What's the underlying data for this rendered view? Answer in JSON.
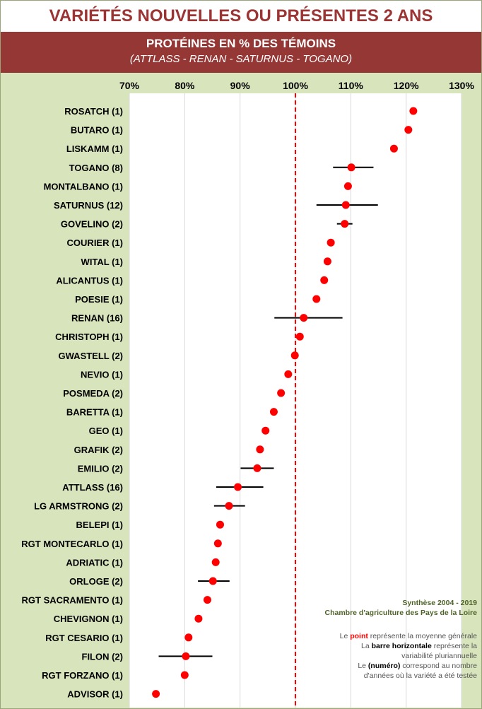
{
  "title": "VARIÉTÉS NOUVELLES OU PRÉSENTES 2 ANS",
  "subtitle": "PROTÉINES EN % DES TÉMOINS",
  "subtitle2": "(ATTLASS - RENAN - SATURNUS - TOGANO)",
  "source_line1": "Synthèse 2004 - 2019",
  "source_line2": "Chambre d'agriculture des Pays de la Loire",
  "legend_note": {
    "l1_a": "Le ",
    "l1_b": "point",
    "l1_c": " représente la moyenne générale",
    "l2_a": "La ",
    "l2_b": "barre horizontale",
    "l2_c": " représente la",
    "l3": "variabilité pluriannuelle",
    "l4_a": "Le ",
    "l4_b": "(numéro)",
    "l4_c": " correspond au nombre",
    "l5": "d'années où la variété a été testée"
  },
  "colors": {
    "point": "#ff0000",
    "reference_line": "#ff0000",
    "bar": "#000000",
    "band": "#953735",
    "frame": "#d8e4bc"
  },
  "chart_data": {
    "type": "scatter",
    "orientation": "horizontal",
    "xlim": [
      70,
      130
    ],
    "x_ticks": [
      "70%",
      "80%",
      "90%",
      "100%",
      "110%",
      "120%",
      "130%"
    ],
    "x_tick_values": [
      70,
      80,
      90,
      100,
      110,
      120,
      130
    ],
    "reference_value": 100,
    "grid": true,
    "categories": [
      "ROSATCH (1)",
      "BUTARO (1)",
      "LISKAMM (1)",
      "TOGANO (8)",
      "MONTALBANO (1)",
      "SATURNUS (12)",
      "GOVELINO (2)",
      "COURIER (1)",
      "WITAL (1)",
      "ALICANTUS (1)",
      "POESIE (1)",
      "RENAN (16)",
      "CHRISTOPH (1)",
      "GWASTELL (2)",
      "NEVIO (1)",
      "POSMEDA (2)",
      "BARETTA (1)",
      "GEO (1)",
      "GRAFIK (2)",
      "EMILIO (2)",
      "ATTLASS (16)",
      "LG ARMSTRONG (2)",
      "BELEPI (1)",
      "RGT MONTECARLO (1)",
      "ADRIATIC (1)",
      "ORLOGE (2)",
      "RGT SACRAMENTO (1)",
      "CHEVIGNON (1)",
      "RGT CESARIO (1)",
      "FILON (2)",
      "RGT FORZANO (1)",
      "ADVISOR (1)"
    ],
    "values": [
      121.3,
      120.4,
      117.8,
      110.1,
      109.5,
      109.1,
      108.9,
      106.4,
      105.8,
      105.2,
      103.8,
      101.5,
      100.8,
      99.9,
      98.7,
      97.4,
      96.1,
      94.6,
      93.6,
      93.1,
      89.6,
      88.0,
      86.4,
      86.0,
      85.6,
      85.1,
      84.1,
      82.5,
      80.7,
      80.2,
      80.0,
      74.8
    ],
    "range_low": [
      null,
      null,
      null,
      106.8,
      null,
      103.8,
      107.5,
      null,
      null,
      null,
      null,
      96.2,
      null,
      null,
      null,
      null,
      null,
      null,
      null,
      90.1,
      85.7,
      85.3,
      null,
      null,
      null,
      82.4,
      null,
      null,
      null,
      75.3,
      null,
      null
    ],
    "range_high": [
      null,
      null,
      null,
      114.1,
      null,
      114.9,
      110.3,
      null,
      null,
      null,
      null,
      108.5,
      null,
      null,
      null,
      null,
      null,
      null,
      null,
      96.1,
      94.2,
      90.9,
      null,
      null,
      null,
      88.1,
      null,
      null,
      null,
      85.0,
      null,
      null
    ]
  }
}
